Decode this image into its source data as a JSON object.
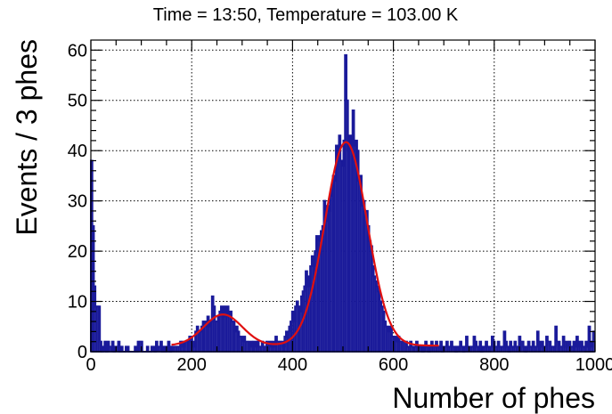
{
  "chart_data": {
    "type": "bar",
    "title": "Time = 13:50, Temperature = 103.00 K",
    "xlabel": "Number of phes",
    "ylabel": "Events / 3 phes",
    "xlim": [
      0,
      1000
    ],
    "ylim": [
      0,
      62
    ],
    "xticks": [
      0,
      200,
      400,
      600,
      800,
      1000
    ],
    "yticks": [
      0,
      10,
      20,
      30,
      40,
      50,
      60
    ],
    "grid": true,
    "bin_width": 3,
    "histogram": {
      "name": "",
      "color": "#1a1a9a",
      "bins": [
        [
          0,
          38
        ],
        [
          3,
          25
        ],
        [
          6,
          13
        ],
        [
          9,
          9
        ],
        [
          12,
          9
        ],
        [
          15,
          9
        ],
        [
          18,
          2
        ],
        [
          21,
          0
        ],
        [
          24,
          1
        ],
        [
          27,
          2
        ],
        [
          30,
          0
        ],
        [
          33,
          2
        ],
        [
          36,
          1
        ],
        [
          39,
          1
        ],
        [
          42,
          2
        ],
        [
          45,
          0
        ],
        [
          48,
          1
        ],
        [
          51,
          1
        ],
        [
          54,
          2
        ],
        [
          57,
          0
        ],
        [
          60,
          1
        ],
        [
          63,
          0
        ],
        [
          66,
          0
        ],
        [
          69,
          1
        ],
        [
          72,
          1
        ],
        [
          75,
          0
        ],
        [
          78,
          0
        ],
        [
          81,
          0
        ],
        [
          84,
          0
        ],
        [
          87,
          1
        ],
        [
          90,
          0
        ],
        [
          93,
          2
        ],
        [
          96,
          2
        ],
        [
          99,
          2
        ],
        [
          102,
          0
        ],
        [
          105,
          0
        ],
        [
          108,
          0
        ],
        [
          111,
          1
        ],
        [
          114,
          0
        ],
        [
          117,
          0
        ],
        [
          120,
          1
        ],
        [
          123,
          1
        ],
        [
          126,
          0
        ],
        [
          129,
          2
        ],
        [
          132,
          1
        ],
        [
          135,
          1
        ],
        [
          138,
          2
        ],
        [
          141,
          0
        ],
        [
          144,
          1
        ],
        [
          147,
          0
        ],
        [
          150,
          1
        ],
        [
          153,
          2
        ],
        [
          156,
          0
        ],
        [
          159,
          1
        ],
        [
          162,
          1
        ],
        [
          165,
          1
        ],
        [
          168,
          1
        ],
        [
          171,
          1
        ],
        [
          174,
          1
        ],
        [
          177,
          2
        ],
        [
          180,
          2
        ],
        [
          183,
          1
        ],
        [
          186,
          2
        ],
        [
          189,
          2
        ],
        [
          192,
          2
        ],
        [
          195,
          3
        ],
        [
          198,
          3
        ],
        [
          201,
          2
        ],
        [
          204,
          1
        ],
        [
          207,
          4
        ],
        [
          210,
          5
        ],
        [
          213,
          4
        ],
        [
          216,
          4
        ],
        [
          219,
          5
        ],
        [
          222,
          6
        ],
        [
          225,
          5
        ],
        [
          228,
          6
        ],
        [
          231,
          7
        ],
        [
          234,
          5
        ],
        [
          237,
          6
        ],
        [
          240,
          11
        ],
        [
          243,
          9
        ],
        [
          246,
          6
        ],
        [
          249,
          6
        ],
        [
          252,
          7
        ],
        [
          255,
          8
        ],
        [
          258,
          9
        ],
        [
          261,
          7
        ],
        [
          264,
          9
        ],
        [
          267,
          8
        ],
        [
          270,
          9
        ],
        [
          273,
          7
        ],
        [
          276,
          8
        ],
        [
          279,
          6
        ],
        [
          282,
          6
        ],
        [
          285,
          4
        ],
        [
          288,
          5
        ],
        [
          291,
          4
        ],
        [
          294,
          3
        ],
        [
          297,
          3
        ],
        [
          300,
          2
        ],
        [
          303,
          3
        ],
        [
          306,
          2
        ],
        [
          309,
          2
        ],
        [
          312,
          2
        ],
        [
          315,
          1
        ],
        [
          318,
          2
        ],
        [
          321,
          2
        ],
        [
          324,
          1
        ],
        [
          327,
          2
        ],
        [
          330,
          2
        ],
        [
          333,
          1
        ],
        [
          336,
          1
        ],
        [
          339,
          2
        ],
        [
          342,
          1
        ],
        [
          345,
          1
        ],
        [
          348,
          2
        ],
        [
          351,
          1
        ],
        [
          354,
          2
        ],
        [
          357,
          1
        ],
        [
          360,
          2
        ],
        [
          363,
          1
        ],
        [
          366,
          3
        ],
        [
          369,
          2
        ],
        [
          372,
          2
        ],
        [
          375,
          2
        ],
        [
          378,
          2
        ],
        [
          381,
          1
        ],
        [
          384,
          3
        ],
        [
          387,
          4
        ],
        [
          390,
          4
        ],
        [
          393,
          5
        ],
        [
          396,
          6
        ],
        [
          399,
          8
        ],
        [
          402,
          6
        ],
        [
          405,
          9
        ],
        [
          408,
          10
        ],
        [
          411,
          9
        ],
        [
          414,
          8
        ],
        [
          417,
          11
        ],
        [
          420,
          12
        ],
        [
          423,
          13
        ],
        [
          426,
          16
        ],
        [
          429,
          13
        ],
        [
          432,
          15
        ],
        [
          435,
          17
        ],
        [
          438,
          19
        ],
        [
          441,
          17
        ],
        [
          444,
          20
        ],
        [
          447,
          23
        ],
        [
          450,
          22
        ],
        [
          453,
          23
        ],
        [
          456,
          24
        ],
        [
          459,
          25
        ],
        [
          462,
          30
        ],
        [
          465,
          26
        ],
        [
          468,
          29
        ],
        [
          471,
          28
        ],
        [
          474,
          31
        ],
        [
          477,
          33
        ],
        [
          480,
          35
        ],
        [
          483,
          34
        ],
        [
          486,
          41
        ],
        [
          489,
          40
        ],
        [
          492,
          43
        ],
        [
          495,
          38
        ],
        [
          498,
          37
        ],
        [
          501,
          42
        ],
        [
          504,
          59
        ],
        [
          507,
          50
        ],
        [
          510,
          40
        ],
        [
          513,
          43
        ],
        [
          516,
          41
        ],
        [
          519,
          48
        ],
        [
          522,
          41
        ],
        [
          525,
          42
        ],
        [
          528,
          40
        ],
        [
          531,
          34
        ],
        [
          534,
          35
        ],
        [
          537,
          29
        ],
        [
          540,
          30
        ],
        [
          543,
          28
        ],
        [
          546,
          28
        ],
        [
          549,
          25
        ],
        [
          552,
          22
        ],
        [
          555,
          21
        ],
        [
          558,
          17
        ],
        [
          561,
          15
        ],
        [
          564,
          14
        ],
        [
          567,
          13
        ],
        [
          570,
          12
        ],
        [
          573,
          10
        ],
        [
          576,
          9
        ],
        [
          579,
          8
        ],
        [
          582,
          6
        ],
        [
          585,
          5
        ],
        [
          588,
          5
        ],
        [
          591,
          4
        ],
        [
          594,
          5
        ],
        [
          597,
          3
        ],
        [
          600,
          3
        ],
        [
          603,
          2
        ],
        [
          606,
          3
        ],
        [
          609,
          3
        ],
        [
          612,
          2
        ],
        [
          615,
          2
        ],
        [
          618,
          2
        ],
        [
          621,
          2
        ],
        [
          624,
          2
        ],
        [
          627,
          1
        ],
        [
          630,
          1
        ],
        [
          633,
          2
        ],
        [
          636,
          1
        ],
        [
          639,
          1
        ],
        [
          642,
          1
        ],
        [
          645,
          2
        ],
        [
          648,
          1
        ],
        [
          651,
          1
        ],
        [
          654,
          1
        ],
        [
          657,
          0
        ],
        [
          660,
          1
        ],
        [
          663,
          2
        ],
        [
          666,
          1
        ],
        [
          669,
          0
        ],
        [
          672,
          1
        ],
        [
          675,
          2
        ],
        [
          678,
          1
        ],
        [
          681,
          1
        ],
        [
          684,
          2
        ],
        [
          687,
          1
        ],
        [
          690,
          1
        ],
        [
          693,
          2
        ],
        [
          696,
          0
        ],
        [
          699,
          1
        ],
        [
          702,
          1
        ],
        [
          705,
          2
        ],
        [
          708,
          1
        ],
        [
          711,
          1
        ],
        [
          714,
          2
        ],
        [
          717,
          1
        ],
        [
          720,
          1
        ],
        [
          723,
          0
        ],
        [
          726,
          1
        ],
        [
          729,
          1
        ],
        [
          732,
          2
        ],
        [
          735,
          1
        ],
        [
          738,
          0
        ],
        [
          741,
          1
        ],
        [
          744,
          3
        ],
        [
          747,
          1
        ],
        [
          750,
          1
        ],
        [
          753,
          1
        ],
        [
          756,
          1
        ],
        [
          759,
          3
        ],
        [
          762,
          2
        ],
        [
          765,
          1
        ],
        [
          768,
          1
        ],
        [
          771,
          2
        ],
        [
          774,
          0
        ],
        [
          777,
          1
        ],
        [
          780,
          1
        ],
        [
          783,
          2
        ],
        [
          786,
          1
        ],
        [
          789,
          1
        ],
        [
          792,
          1
        ],
        [
          795,
          3
        ],
        [
          798,
          2
        ],
        [
          801,
          1
        ],
        [
          804,
          1
        ],
        [
          807,
          2
        ],
        [
          810,
          1
        ],
        [
          813,
          1
        ],
        [
          816,
          1
        ],
        [
          819,
          4
        ],
        [
          822,
          2
        ],
        [
          825,
          1
        ],
        [
          828,
          0
        ],
        [
          831,
          2
        ],
        [
          834,
          1
        ],
        [
          837,
          1
        ],
        [
          840,
          2
        ],
        [
          843,
          1
        ],
        [
          846,
          1
        ],
        [
          849,
          3
        ],
        [
          852,
          2
        ],
        [
          855,
          2
        ],
        [
          858,
          1
        ],
        [
          861,
          0
        ],
        [
          864,
          1
        ],
        [
          867,
          2
        ],
        [
          870,
          1
        ],
        [
          873,
          1
        ],
        [
          876,
          2
        ],
        [
          879,
          1
        ],
        [
          882,
          1
        ],
        [
          885,
          4
        ],
        [
          888,
          2
        ],
        [
          891,
          1
        ],
        [
          894,
          2
        ],
        [
          897,
          1
        ],
        [
          900,
          1
        ],
        [
          903,
          3
        ],
        [
          906,
          2
        ],
        [
          909,
          2
        ],
        [
          912,
          1
        ],
        [
          915,
          1
        ],
        [
          918,
          1
        ],
        [
          921,
          5
        ],
        [
          924,
          2
        ],
        [
          927,
          2
        ],
        [
          930,
          1
        ],
        [
          933,
          1
        ],
        [
          936,
          3
        ],
        [
          939,
          2
        ],
        [
          942,
          1
        ],
        [
          945,
          2
        ],
        [
          948,
          2
        ],
        [
          951,
          1
        ],
        [
          954,
          1
        ],
        [
          957,
          2
        ],
        [
          960,
          1
        ],
        [
          963,
          3
        ],
        [
          966,
          1
        ],
        [
          969,
          2
        ],
        [
          972,
          2
        ],
        [
          975,
          1
        ],
        [
          978,
          1
        ],
        [
          981,
          2
        ],
        [
          984,
          1
        ],
        [
          987,
          5
        ],
        [
          990,
          2
        ],
        [
          993,
          1
        ],
        [
          996,
          4
        ]
      ]
    },
    "fit": {
      "name": "",
      "color": "#e01010",
      "x_range": [
        160,
        690
      ],
      "components": [
        {
          "amplitude": 6.2,
          "mean": 262,
          "sigma": 38
        },
        {
          "amplitude": 40.5,
          "mean": 506,
          "sigma": 42
        }
      ],
      "baseline": 1.2
    }
  }
}
